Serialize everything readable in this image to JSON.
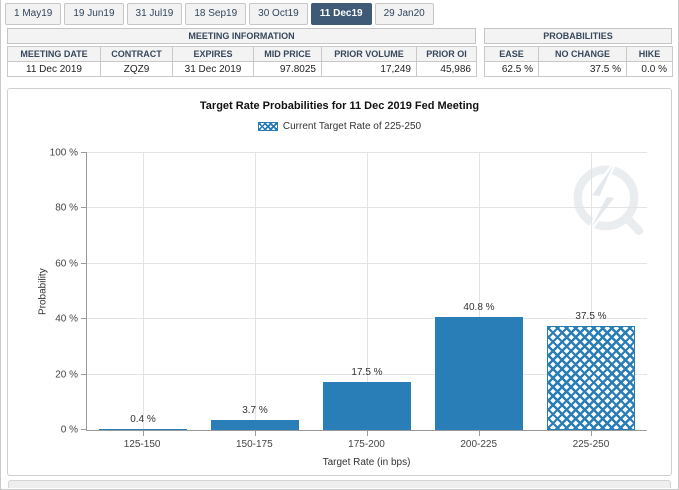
{
  "tabs": {
    "items": [
      {
        "label": "1 May19"
      },
      {
        "label": "19 Jun19"
      },
      {
        "label": "31 Jul19"
      },
      {
        "label": "18 Sep19"
      },
      {
        "label": "30 Oct19"
      },
      {
        "label": "11 Dec19"
      },
      {
        "label": "29 Jan20"
      }
    ],
    "active_label": "11 Dec19"
  },
  "meeting_info": {
    "title": "MEETING INFORMATION",
    "columns": [
      "MEETING DATE",
      "CONTRACT",
      "EXPIRES",
      "MID PRICE",
      "PRIOR VOLUME",
      "PRIOR OI"
    ],
    "row": {
      "meeting_date": "11 Dec 2019",
      "contract": "ZQZ9",
      "expires": "31 Dec 2019",
      "mid_price": "97.8025",
      "prior_volume": "17,249",
      "prior_oi": "45,986"
    }
  },
  "probabilities": {
    "title": "PROBABILITIES",
    "columns": [
      "EASE",
      "NO CHANGE",
      "HIKE"
    ],
    "row": {
      "ease": "62.5 %",
      "no_change": "37.5 %",
      "hike": "0.0 %"
    }
  },
  "chart_data": {
    "type": "bar",
    "title": "Target Rate Probabilities for 11 Dec 2019 Fed Meeting",
    "legend": [
      {
        "label": "Current Target Rate of 225-250",
        "style": "crosshatch"
      }
    ],
    "legend_position": "top",
    "categories": [
      "125-150",
      "150-175",
      "175-200",
      "200-225",
      "225-250"
    ],
    "values": [
      0.4,
      3.7,
      17.5,
      40.8,
      37.5
    ],
    "value_labels": [
      "0.4 %",
      "3.7 %",
      "17.5 %",
      "40.8 %",
      "37.5 %"
    ],
    "hatched_index": 4,
    "xlabel": "Target Rate (in bps)",
    "ylabel": "Probability",
    "ylim": [
      0,
      100
    ],
    "yticks": [
      "0 %",
      "20 %",
      "40 %",
      "60 %",
      "80 %",
      "100 %"
    ],
    "grid": true,
    "bar_color": "#2a7eb7"
  },
  "colors": {
    "bar_blue": "#2a7eb7",
    "active_tab": "#3e5a77",
    "gridline": "#e3e3e3",
    "table_header_bg": "#f3f3f4"
  }
}
